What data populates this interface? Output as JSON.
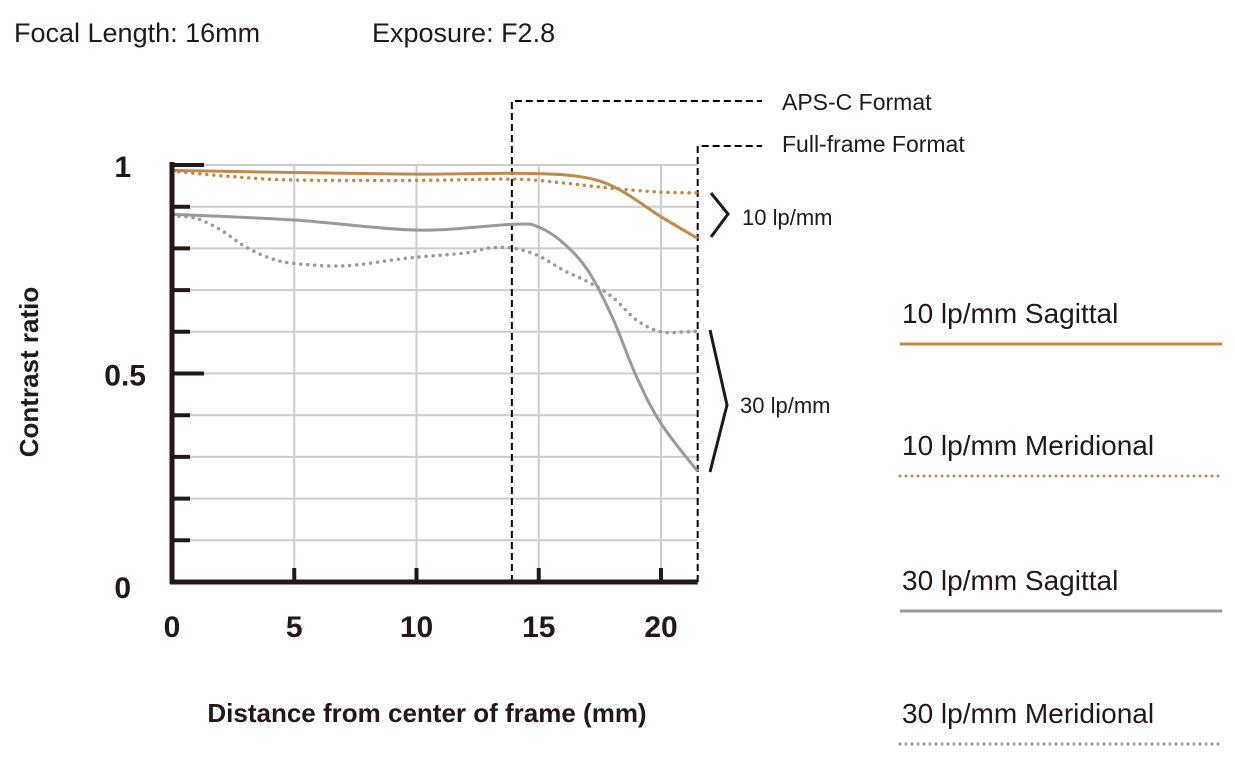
{
  "header": {
    "focal_length": "Focal Length: 16mm",
    "exposure": "Exposure: F2.8"
  },
  "format_labels": {
    "aps_c": "APS-C Format",
    "full_frame": "Full-frame Format"
  },
  "group_labels": {
    "lp10": "10 lp/mm",
    "lp30": "30 lp/mm"
  },
  "colors": {
    "orange": "#C08A4B",
    "gray": "#999999",
    "axis": "#231815",
    "grid": "#CCCCCC"
  },
  "chart_data": {
    "type": "line",
    "xlabel": "Distance from center of frame (mm)",
    "ylabel": "Contrast ratio",
    "xlim": [
      0,
      21.5
    ],
    "ylim": [
      0,
      1
    ],
    "x_ticks": [
      0,
      5,
      10,
      15,
      20
    ],
    "x_tick_labels": [
      "0",
      "5",
      "10",
      "15",
      "20"
    ],
    "y_tick_labels": [
      {
        "value": 0,
        "label": "0"
      },
      {
        "value": 0.5,
        "label": "0.5"
      },
      {
        "value": 1,
        "label": "1"
      }
    ],
    "grid": true,
    "format_limits_mm": {
      "aps_c": 13.9,
      "full_frame": 21.5
    },
    "legend_position": "right",
    "series": [
      {
        "name": "10 lp/mm Sagittal",
        "color": "#C08A4B",
        "style": "solid",
        "x": [
          0,
          5,
          10,
          14.3,
          16.7,
          18.2,
          20,
          21.5
        ],
        "y": [
          0.987,
          0.982,
          0.978,
          0.98,
          0.972,
          0.944,
          0.876,
          0.824
        ]
      },
      {
        "name": "10 lp/mm Meridional",
        "color": "#C08A4B",
        "style": "dotted",
        "x": [
          0,
          2.5,
          5,
          10,
          14,
          16,
          18,
          20,
          21.5
        ],
        "y": [
          0.985,
          0.972,
          0.964,
          0.963,
          0.966,
          0.957,
          0.944,
          0.935,
          0.933
        ]
      },
      {
        "name": "30 lp/mm Sagittal",
        "color": "#999999",
        "style": "solid",
        "x": [
          0,
          5,
          10,
          14,
          15,
          16,
          17,
          18,
          19,
          20,
          21.5
        ],
        "y": [
          0.882,
          0.868,
          0.844,
          0.858,
          0.851,
          0.813,
          0.748,
          0.636,
          0.492,
          0.38,
          0.265
        ]
      },
      {
        "name": "30 lp/mm Meridional",
        "color": "#999999",
        "style": "dotted",
        "x": [
          0,
          1,
          2,
          3,
          4,
          5,
          7,
          9,
          10,
          12,
          13,
          14,
          15,
          16,
          17,
          18,
          19,
          20,
          21,
          21.5
        ],
        "y": [
          0.878,
          0.872,
          0.844,
          0.804,
          0.777,
          0.764,
          0.758,
          0.772,
          0.779,
          0.789,
          0.801,
          0.8,
          0.782,
          0.748,
          0.72,
          0.684,
          0.628,
          0.6,
          0.6,
          0.602
        ]
      }
    ]
  }
}
